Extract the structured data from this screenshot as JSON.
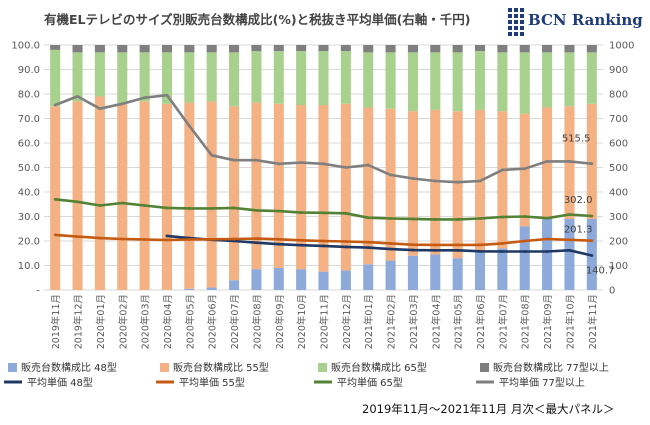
{
  "title": "有機ELテレビのサイズ別販売台数構成比(%)と税抜き平均単価(右軸・千円)",
  "logo_text": "BCN Ranking",
  "footer": "2019年11月～2021年11月 月次＜最大パネル＞",
  "colors": {
    "bar48": "#8eaadb",
    "bar55": "#f4b183",
    "bar65": "#a9d18e",
    "bar77": "#7f7f7f",
    "line48": "#1f3864",
    "line55": "#c55a11",
    "line65": "#548235",
    "line77": "#7f7f7f",
    "grid": "#d9d9d9",
    "axis_text": "#595959"
  },
  "chart_data": {
    "type": "bar",
    "stacked": true,
    "categories": [
      "2019年11月",
      "2019年12月",
      "2020年01月",
      "2020年02月",
      "2020年03月",
      "2020年04月",
      "2020年05月",
      "2020年06月",
      "2020年07月",
      "2020年08月",
      "2020年09月",
      "2020年10月",
      "2020年11月",
      "2020年12月",
      "2021年01月",
      "2021年02月",
      "2021年03月",
      "2021年04月",
      "2021年05月",
      "2021年06月",
      "2021年07月",
      "2021年08月",
      "2021年09月",
      "2021年10月",
      "2021年11月"
    ],
    "y_left": {
      "min": 0,
      "max": 100,
      "step": 10,
      "ticks": [
        "-",
        "10.0",
        "20.0",
        "30.0",
        "40.0",
        "50.0",
        "60.0",
        "70.0",
        "80.0",
        "90.0",
        "100.0"
      ]
    },
    "y_right": {
      "min": 0,
      "max": 1000,
      "step": 100,
      "ticks": [
        "0",
        "100",
        "200",
        "300",
        "400",
        "500",
        "600",
        "700",
        "800",
        "900",
        "1000"
      ]
    },
    "grid": true,
    "legend_position": "bottom",
    "bar_series": [
      {
        "name": "販売台数構成比 48型",
        "color_key": "bar48",
        "values": [
          0,
          0,
          0,
          0,
          0,
          0,
          0.5,
          1,
          4,
          8.5,
          9,
          8.5,
          7.5,
          8,
          10.5,
          12,
          14,
          14.5,
          13,
          15.5,
          17,
          26,
          29.5,
          29,
          29
        ]
      },
      {
        "name": "販売台数構成比 55型",
        "color_key": "bar55",
        "values": [
          75,
          77,
          79,
          76,
          77,
          76,
          76,
          76,
          71,
          68,
          67,
          67,
          68,
          68,
          64,
          62,
          59,
          59,
          60,
          58,
          56,
          46,
          45,
          46,
          47
        ]
      },
      {
        "name": "販売台数構成比 65型",
        "color_key": "bar65",
        "values": [
          23,
          20,
          18,
          21,
          20,
          21,
          20.5,
          20,
          22,
          21,
          21.5,
          22,
          22,
          21.5,
          22.5,
          23,
          24,
          23.5,
          24,
          24,
          24,
          25,
          22.5,
          22,
          21
        ]
      },
      {
        "name": "販売台数構成比 77型以上",
        "color_key": "bar77",
        "values": [
          2,
          3,
          3,
          3,
          3,
          3,
          3,
          3,
          3,
          2.5,
          2.5,
          2.5,
          2.5,
          2.5,
          3,
          3,
          3,
          3,
          3,
          2.5,
          3,
          3,
          3,
          3,
          3
        ]
      }
    ],
    "line_series": [
      {
        "name": "平均単価 48型",
        "color_key": "line48",
        "axis": "right",
        "values": [
          null,
          null,
          null,
          null,
          null,
          221,
          212,
          205,
          200,
          193,
          187,
          183,
          180,
          176,
          173,
          167,
          163,
          162,
          162,
          158,
          157,
          157,
          157,
          162,
          140.7
        ]
      },
      {
        "name": "平均単価 55型",
        "color_key": "line55",
        "axis": "right",
        "values": [
          225,
          218,
          212,
          208,
          206,
          204,
          206,
          207,
          208,
          210,
          207,
          203,
          200,
          198,
          195,
          190,
          185,
          184,
          184,
          184,
          190,
          200,
          208,
          205,
          201.3
        ]
      },
      {
        "name": "平均単価 65型",
        "color_key": "line65",
        "axis": "right",
        "values": [
          370,
          360,
          345,
          355,
          345,
          335,
          333,
          333,
          335,
          325,
          322,
          316,
          315,
          313,
          295,
          292,
          290,
          288,
          288,
          292,
          298,
          300,
          293,
          308,
          302.0
        ]
      },
      {
        "name": "平均単価 77型以上",
        "color_key": "line77",
        "axis": "right",
        "values": [
          755,
          790,
          740,
          760,
          785,
          795,
          670,
          550,
          530,
          530,
          515,
          520,
          515,
          500,
          510,
          470,
          455,
          445,
          440,
          445,
          490,
          495,
          525,
          525,
          515.5
        ]
      }
    ],
    "data_labels": [
      {
        "series": "平均単価 77型以上",
        "index": 24,
        "text": "515.5"
      },
      {
        "series": "平均単価 65型",
        "index": 24,
        "text": "302.0"
      },
      {
        "series": "平均単価 55型",
        "index": 24,
        "text": "201.3"
      },
      {
        "series": "平均単価 48型",
        "index": 24,
        "text": "140.7"
      }
    ],
    "legend": {
      "rows": [
        [
          "販売台数構成比 48型",
          "販売台数構成比 55型",
          "販売台数構成比 65型",
          "販売台数構成比 77型以上"
        ],
        [
          "平均単価 48型",
          "平均単価 55型",
          "平均単価 65型",
          "平均単価 77型以上"
        ]
      ]
    }
  }
}
